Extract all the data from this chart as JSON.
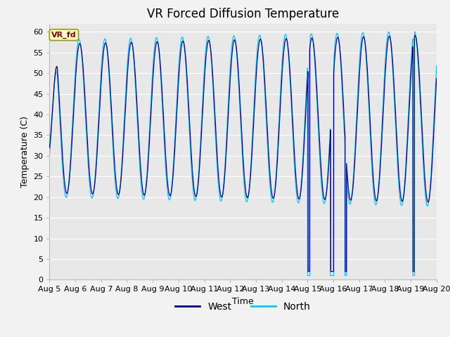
{
  "title": "VR Forced Diffusion Temperature",
  "xlabel": "Time",
  "ylabel": "Temperature (C)",
  "ylim": [
    0,
    62
  ],
  "yticks": [
    0,
    5,
    10,
    15,
    20,
    25,
    30,
    35,
    40,
    45,
    50,
    55,
    60
  ],
  "xtick_labels": [
    "Aug 5",
    "Aug 6",
    "Aug 7",
    "Aug 8",
    "Aug 9",
    "Aug 10",
    "Aug 11",
    "Aug 12",
    "Aug 13",
    "Aug 14",
    "Aug 15",
    "Aug 16",
    "Aug 17",
    "Aug 18",
    "Aug 19",
    "Aug 20"
  ],
  "west_color": "#00008B",
  "north_color": "#00CCFF",
  "bg_color": "#E8E8E8",
  "fig_color": "#F2F2F2",
  "annotation_text": "VR_fd",
  "annotation_bg": "#FFFFCC",
  "annotation_border": "#999900",
  "title_fontsize": 12,
  "label_fontsize": 9,
  "tick_fontsize": 8
}
